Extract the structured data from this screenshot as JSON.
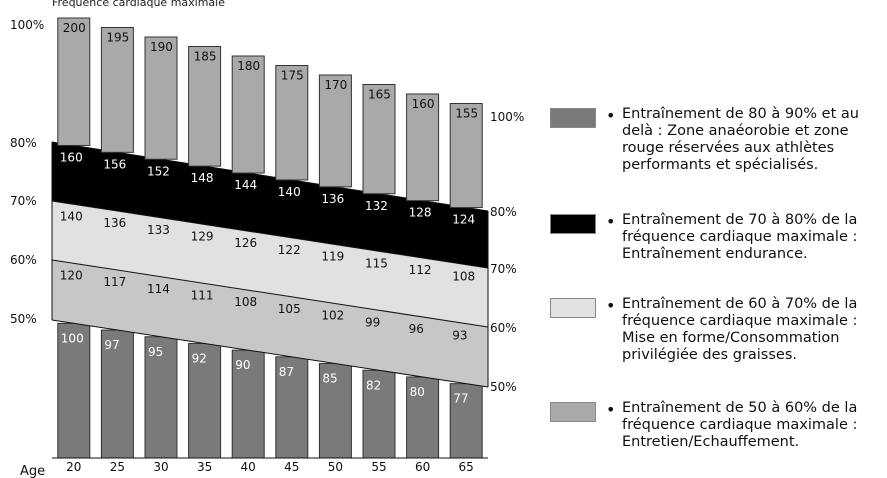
{
  "chart_data": {
    "type": "bar",
    "title": "Fréquence cardiaque maximale",
    "xlabel": "Age",
    "ages": [
      20,
      25,
      30,
      35,
      40,
      45,
      50,
      55,
      60,
      65
    ],
    "max_hr": [
      200,
      195,
      190,
      185,
      180,
      175,
      170,
      165,
      160,
      155
    ],
    "zones": {
      "p80": [
        160,
        156,
        152,
        148,
        144,
        140,
        136,
        132,
        128,
        124
      ],
      "p70": [
        140,
        136,
        133,
        129,
        126,
        122,
        119,
        115,
        112,
        108
      ],
      "p60": [
        120,
        117,
        114,
        111,
        108,
        105,
        102,
        99,
        96,
        93
      ],
      "p50": [
        100,
        97,
        95,
        92,
        90,
        87,
        85,
        82,
        80,
        77
      ]
    },
    "left_axis_labels": [
      "100%",
      "80%",
      "70%",
      "60%",
      "50%"
    ],
    "right_axis_labels": [
      "100%",
      "80%",
      "70%",
      "60%",
      "50%"
    ],
    "colors": {
      "top_bar": "#a9a9a9",
      "zone_80_90": "#000000",
      "zone_70_80": "#e1e1e1",
      "zone_60_70": "#c7c7c7",
      "bottom_bar": "#7a7a7a"
    }
  },
  "legend": [
    {
      "text": "Entraînement de 80 à 90% et au delà : Zone anaéorobie et zone rouge réservées aux athlètes performants et spécialisés.",
      "color": "#7a7a7a"
    },
    {
      "text": "Entraînement de 70 à 80% de la fréquence cardiaque maximale : Entraînement endurance.",
      "color": "#000000"
    },
    {
      "text": "Entraînement de 60 à 70% de la fréquence cardiaque maximale : Mise en forme/Consommation privilégiée des graisses.",
      "color": "#e1e1e1"
    },
    {
      "text": "Entraînement de 50 à 60% de la fréquence cardiaque maximale : Entretien/Echauffement.",
      "color": "#a9a9a9"
    }
  ]
}
